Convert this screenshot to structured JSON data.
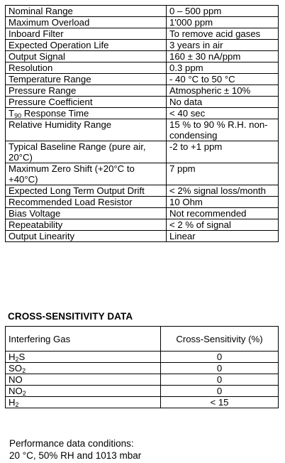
{
  "spec_rows": [
    {
      "param": "Nominal Range",
      "value": "0 – 500 ppm"
    },
    {
      "param": "Maximum Overload",
      "value": "1'000 ppm"
    },
    {
      "param": "Inboard Filter",
      "value": "To remove acid gases"
    },
    {
      "param": "Expected Operation Life",
      "value": "3 years in air"
    },
    {
      "param": "Output Signal",
      "value": "160 ± 30 nA/ppm"
    },
    {
      "param": "Resolution",
      "value": "0.3 ppm"
    },
    {
      "param": "Temperature Range",
      "value": "- 40 °C to 50 °C"
    },
    {
      "param": "Pressure Range",
      "value": "Atmospheric ± 10%"
    },
    {
      "param": "Pressure Coefficient",
      "value": "No data"
    },
    {
      "param_main": "T",
      "param_sub": "90",
      "param_rest": " Response Time",
      "value": "< 40 sec"
    },
    {
      "param": "Relative Humidity Range",
      "value": "15 % to 90 % R.H. non-condensing"
    },
    {
      "param": "Typical Baseline Range (pure air, 20°C)",
      "value": "-2 to +1 ppm"
    },
    {
      "param": "Maximum Zero Shift (+20°C to +40°C)",
      "value": "7 ppm"
    },
    {
      "param": "Expected Long Term Output Drift",
      "value": "< 2% signal loss/month"
    },
    {
      "param": "Recommended Load Resistor",
      "value": "10 Ohm"
    },
    {
      "param": "Bias Voltage",
      "value": "Not recommended"
    },
    {
      "param": "Repeatability",
      "value": "< 2 % of signal"
    },
    {
      "param": "Output Linearity",
      "value": "Linear"
    }
  ],
  "cross_section": {
    "heading": "CROSS-SENSITIVITY DATA",
    "col_gas": "Interfering Gas",
    "col_sens": "Cross-Sensitivity (%)",
    "rows": [
      {
        "gas_main": "H",
        "gas_sub": "2",
        "gas_rest": "S",
        "value": "0"
      },
      {
        "gas_main": "SO",
        "gas_sub": "2",
        "gas_rest": "",
        "value": "0"
      },
      {
        "gas_main": "NO",
        "gas_sub": "",
        "gas_rest": "",
        "value": "0"
      },
      {
        "gas_main": "NO",
        "gas_sub": "2",
        "gas_rest": "",
        "value": "0"
      },
      {
        "gas_main": "H",
        "gas_sub": "2",
        "gas_rest": "",
        "value": "< 15"
      }
    ]
  },
  "footer": {
    "line1": "Performance data conditions:",
    "line2": "20 °C, 50% RH and 1013 mbar"
  }
}
